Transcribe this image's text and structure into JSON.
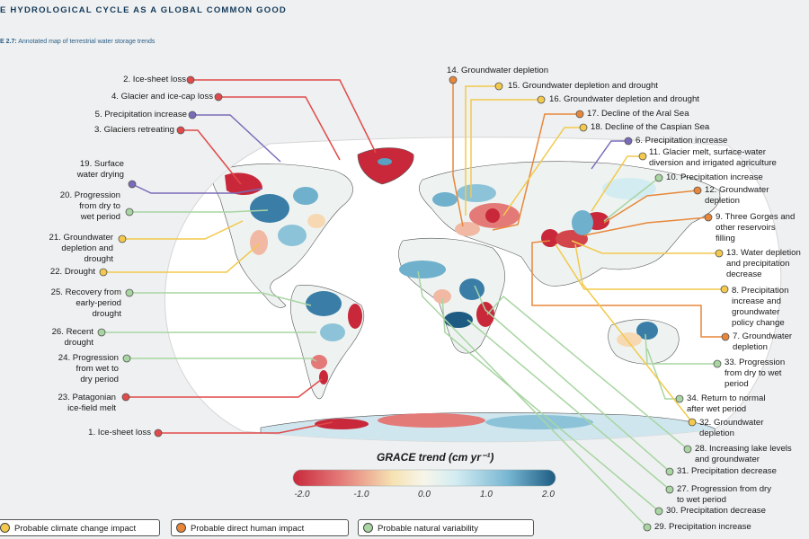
{
  "header": {
    "section_title": "E HYDROLOGICAL CYCLE AS A GLOBAL COMMON GOOD",
    "figure_label": "E 2.7:",
    "figure_caption": "Annotated map of terrestrial water storage trends"
  },
  "colors": {
    "climate": "#f2c94c",
    "human": "#e8873a",
    "natural": "#a8d5a2",
    "ice": "#e04a4a",
    "precip": "#7a6bb8"
  },
  "annotations": [
    {
      "id": "2",
      "text": "2. Ice-sheet loss",
      "category": "ice"
    },
    {
      "id": "4",
      "text": "4. Glacier and ice-cap loss",
      "category": "ice"
    },
    {
      "id": "5",
      "text": "5. Precipitation increase",
      "category": "precip"
    },
    {
      "id": "3",
      "text": "3. Glaciers retreating",
      "category": "ice"
    },
    {
      "id": "19",
      "text": "19. Surface\nwater drying",
      "category": "precip"
    },
    {
      "id": "20",
      "text": "20. Progression\nfrom dry to\nwet period",
      "category": "natural"
    },
    {
      "id": "21",
      "text": "21. Groundwater\ndepletion and\ndrought",
      "category": "climate"
    },
    {
      "id": "22",
      "text": "22. Drought",
      "category": "climate"
    },
    {
      "id": "25",
      "text": "25. Recovery from\nearly-period\ndrought",
      "category": "natural"
    },
    {
      "id": "26",
      "text": "26. Recent\ndrought",
      "category": "natural"
    },
    {
      "id": "24",
      "text": "24. Progression\nfrom wet to\ndry period",
      "category": "natural"
    },
    {
      "id": "23",
      "text": "23. Patagonian\nice-field melt",
      "category": "ice"
    },
    {
      "id": "1",
      "text": "1. Ice-sheet loss",
      "category": "ice"
    },
    {
      "id": "14",
      "text": "14. Groundwater depletion",
      "category": "human"
    },
    {
      "id": "15",
      "text": "15. Groundwater depletion and drought",
      "category": "climate"
    },
    {
      "id": "16",
      "text": "16. Groundwater depletion and drought",
      "category": "climate"
    },
    {
      "id": "17",
      "text": "17. Decline of the Aral Sea",
      "category": "human"
    },
    {
      "id": "18",
      "text": "18. Decline of the Caspian Sea",
      "category": "climate"
    },
    {
      "id": "6",
      "text": "6. Precipitation increase",
      "category": "precip"
    },
    {
      "id": "11",
      "text": "11. Glacier melt, surface-water\ndiversion and irrigated agriculture",
      "category": "climate"
    },
    {
      "id": "10",
      "text": "10. Precipitation increase",
      "category": "natural"
    },
    {
      "id": "12",
      "text": "12. Groundwater\ndepletion",
      "category": "human"
    },
    {
      "id": "9",
      "text": "9. Three Gorges and\nother reservoirs\nfilling",
      "category": "human"
    },
    {
      "id": "13",
      "text": "13. Water depletion\nand precipitation\ndecrease",
      "category": "climate"
    },
    {
      "id": "8",
      "text": "8. Precipitation\nincrease and\ngroundwater\npolicy change",
      "category": "climate"
    },
    {
      "id": "7",
      "text": "7. Groundwater\ndepletion",
      "category": "human"
    },
    {
      "id": "33",
      "text": "33. Progression\nfrom dry to wet\nperiod",
      "category": "natural"
    },
    {
      "id": "34",
      "text": "34. Return to normal\nafter wet period",
      "category": "natural"
    },
    {
      "id": "32",
      "text": "32. Groundwater\ndepletion",
      "category": "climate"
    },
    {
      "id": "28",
      "text": "28. Increasing lake levels\nand groundwater",
      "category": "natural"
    },
    {
      "id": "31",
      "text": "31. Precipitation decrease",
      "category": "natural"
    },
    {
      "id": "27",
      "text": "27. Progression from dry\nto wet period",
      "category": "natural"
    },
    {
      "id": "30",
      "text": "30. Precipitation decrease",
      "category": "natural"
    },
    {
      "id": "29",
      "text": "29. Precipitation increase",
      "category": "natural"
    }
  ],
  "colorbar": {
    "title": "GRACE trend (cm yr⁻¹)",
    "ticks": [
      "-2.0",
      "-1.0",
      "0.0",
      "1.0",
      "2.0"
    ],
    "min": -2.0,
    "max": 2.0
  },
  "legend": [
    {
      "label": "Probable climate change impact",
      "category": "climate"
    },
    {
      "label": "Probable direct human impact",
      "category": "human"
    },
    {
      "label": "Probable natural variability",
      "category": "natural"
    }
  ]
}
